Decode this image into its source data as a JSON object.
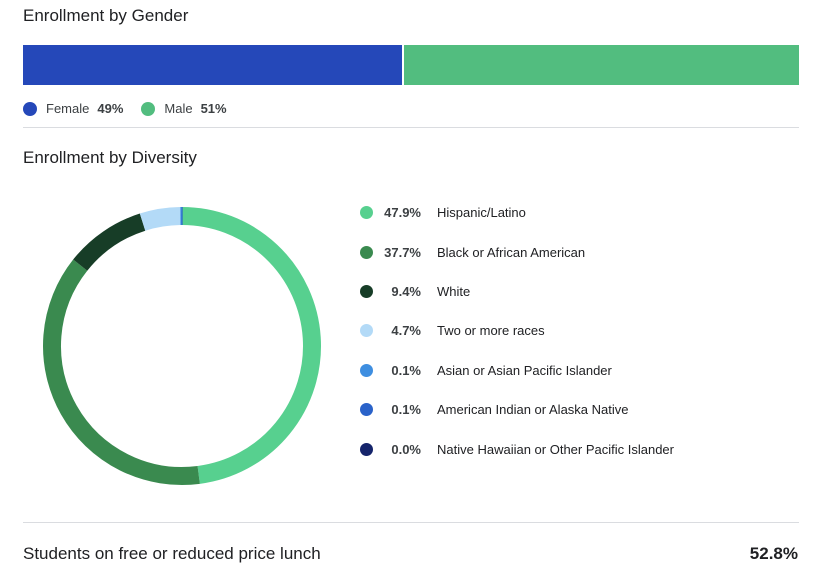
{
  "gender": {
    "title": "Enrollment by Gender",
    "items": [
      {
        "label": "Female",
        "percent_text": "49%",
        "value": 49,
        "color": "#2548b9"
      },
      {
        "label": "Male",
        "percent_text": "51%",
        "value": 51,
        "color": "#52bd7f"
      }
    ]
  },
  "diversity": {
    "title": "Enrollment by Diversity"
  },
  "chart_data": [
    {
      "type": "bar",
      "title": "Enrollment by Gender",
      "categories": [
        "Female",
        "Male"
      ],
      "values": [
        49,
        51
      ],
      "stacked": true,
      "unit": "%"
    },
    {
      "type": "pie",
      "title": "Enrollment by Diversity",
      "donut": true,
      "categories": [
        "Hispanic/Latino",
        "Black or African American",
        "White",
        "Two or more races",
        "Asian or Asian Pacific Islander",
        "American Indian or Alaska Native",
        "Native Hawaiian or Other Pacific Islander"
      ],
      "values": [
        47.9,
        37.7,
        9.4,
        4.7,
        0.1,
        0.1,
        0.0
      ],
      "labels": [
        "47.9%",
        "37.7%",
        "9.4%",
        "4.7%",
        "0.1%",
        "0.1%",
        "0.0%"
      ],
      "colors": [
        "#57d08f",
        "#3a8a4f",
        "#173d27",
        "#b3daf7",
        "#3e8ee0",
        "#2a62c9",
        "#15246b"
      ],
      "legend": "right"
    }
  ],
  "lunch": {
    "label": "Students on free or reduced price lunch",
    "value": "52.8%"
  }
}
